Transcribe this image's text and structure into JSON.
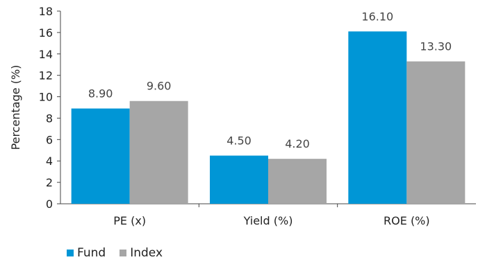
{
  "chart_data": {
    "type": "bar",
    "categories": [
      "PE (x)",
      "Yield (%)",
      "ROE (%)"
    ],
    "series": [
      {
        "name": "Fund",
        "values": [
          8.9,
          4.5,
          16.1
        ],
        "labels": [
          "8.90",
          "4.50",
          "16.10"
        ],
        "color": "#0096d6"
      },
      {
        "name": "Index",
        "values": [
          9.6,
          4.2,
          13.3
        ],
        "labels": [
          "9.60",
          "4.20",
          "13.30"
        ],
        "color": "#a6a6a6"
      }
    ],
    "ylabel": "Percentage (%)",
    "xlabel": "",
    "ylim": [
      0,
      18
    ],
    "yticks": [
      0,
      2,
      4,
      6,
      8,
      10,
      12,
      14,
      16,
      18
    ],
    "grid": false,
    "legend_position": "bottom-left"
  }
}
